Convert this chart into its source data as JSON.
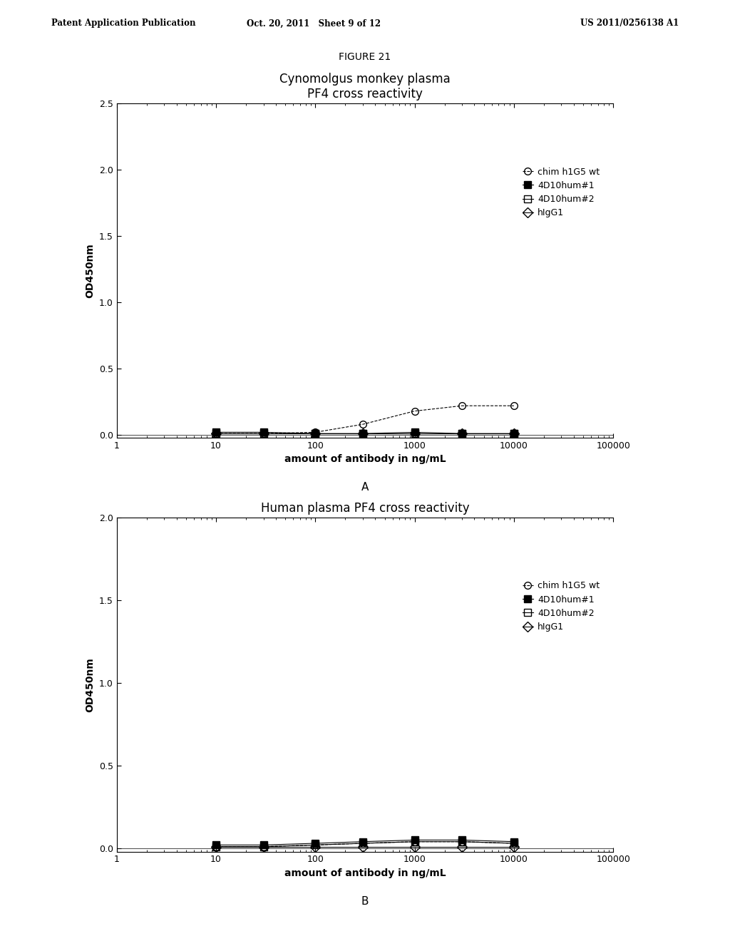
{
  "figure_title": "FIGURE 21",
  "panel_A": {
    "title": "Cynomolgus monkey plasma\nPF4 cross reactivity",
    "xlabel": "amount of antibody in ng/mL",
    "ylabel": "OD450nm",
    "ylim": [
      -0.02,
      2.5
    ],
    "yticks": [
      0.0,
      0.5,
      1.0,
      1.5,
      2.0,
      2.5
    ],
    "xlim": [
      1,
      100000
    ],
    "panel_label": "A",
    "series": {
      "chim_h1G5_wt": {
        "x": [
          10,
          30,
          100,
          300,
          1000,
          3000,
          10000
        ],
        "y": [
          0.01,
          0.01,
          0.02,
          0.08,
          0.18,
          0.22,
          0.22
        ],
        "marker": "o",
        "fillstyle": "none",
        "color": "black",
        "linestyle": "--",
        "label": "chim h1G5 wt"
      },
      "4D10hum1": {
        "x": [
          10,
          30,
          100,
          300,
          1000,
          3000,
          10000
        ],
        "y": [
          0.02,
          0.02,
          0.01,
          0.01,
          0.02,
          0.01,
          0.01
        ],
        "marker": "s",
        "fillstyle": "full",
        "color": "black",
        "linestyle": "-",
        "label": "4D10hum#1"
      },
      "4D10hum2": {
        "x": [
          10,
          30,
          100,
          300,
          1000,
          3000,
          10000
        ],
        "y": [
          0.01,
          0.01,
          0.01,
          0.01,
          0.01,
          0.01,
          0.01
        ],
        "marker": "s",
        "fillstyle": "none",
        "color": "black",
        "linestyle": "-",
        "label": "4D10hum#2"
      },
      "hIgG1": {
        "x": [
          10,
          30,
          100,
          300,
          1000,
          3000,
          10000
        ],
        "y": [
          0.01,
          0.01,
          0.01,
          0.01,
          0.01,
          0.01,
          0.01
        ],
        "marker": "D",
        "fillstyle": "none",
        "color": "black",
        "linestyle": "-",
        "label": "hIgG1"
      }
    }
  },
  "panel_B": {
    "title": "Human plasma PF4 cross reactivity",
    "xlabel": "amount of antibody in ng/mL",
    "ylabel": "OD450nm",
    "ylim": [
      -0.02,
      2.0
    ],
    "yticks": [
      0.0,
      0.5,
      1.0,
      1.5,
      2.0
    ],
    "xlim": [
      1,
      100000
    ],
    "panel_label": "B",
    "series": {
      "chim_h1G5_wt": {
        "x": [
          10,
          30,
          100,
          300,
          1000,
          3000,
          10000
        ],
        "y": [
          0.01,
          0.01,
          0.02,
          0.03,
          0.04,
          0.04,
          0.03
        ],
        "marker": "o",
        "fillstyle": "none",
        "color": "black",
        "linestyle": "--",
        "label": "chim h1G5 wt"
      },
      "4D10hum1": {
        "x": [
          10,
          30,
          100,
          300,
          1000,
          3000,
          10000
        ],
        "y": [
          0.02,
          0.02,
          0.03,
          0.04,
          0.05,
          0.05,
          0.04
        ],
        "marker": "s",
        "fillstyle": "full",
        "color": "black",
        "linestyle": "-",
        "label": "4D10hum#1"
      },
      "4D10hum2": {
        "x": [
          10,
          30,
          100,
          300,
          1000,
          3000,
          10000
        ],
        "y": [
          0.01,
          0.01,
          0.02,
          0.03,
          0.04,
          0.04,
          0.03
        ],
        "marker": "s",
        "fillstyle": "none",
        "color": "black",
        "linestyle": "-",
        "label": "4D10hum#2"
      },
      "hIgG1": {
        "x": [
          10,
          30,
          100,
          300,
          1000,
          3000,
          10000
        ],
        "y": [
          0.01,
          0.01,
          0.01,
          0.01,
          0.01,
          0.01,
          0.01
        ],
        "marker": "D",
        "fillstyle": "none",
        "color": "black",
        "linestyle": "-",
        "label": "hIgG1"
      }
    }
  },
  "header_left": "Patent Application Publication",
  "header_center": "Oct. 20, 2011   Sheet 9 of 12",
  "header_right": "US 2011/0256138 A1",
  "background_color": "#ffffff",
  "font_color": "#000000"
}
